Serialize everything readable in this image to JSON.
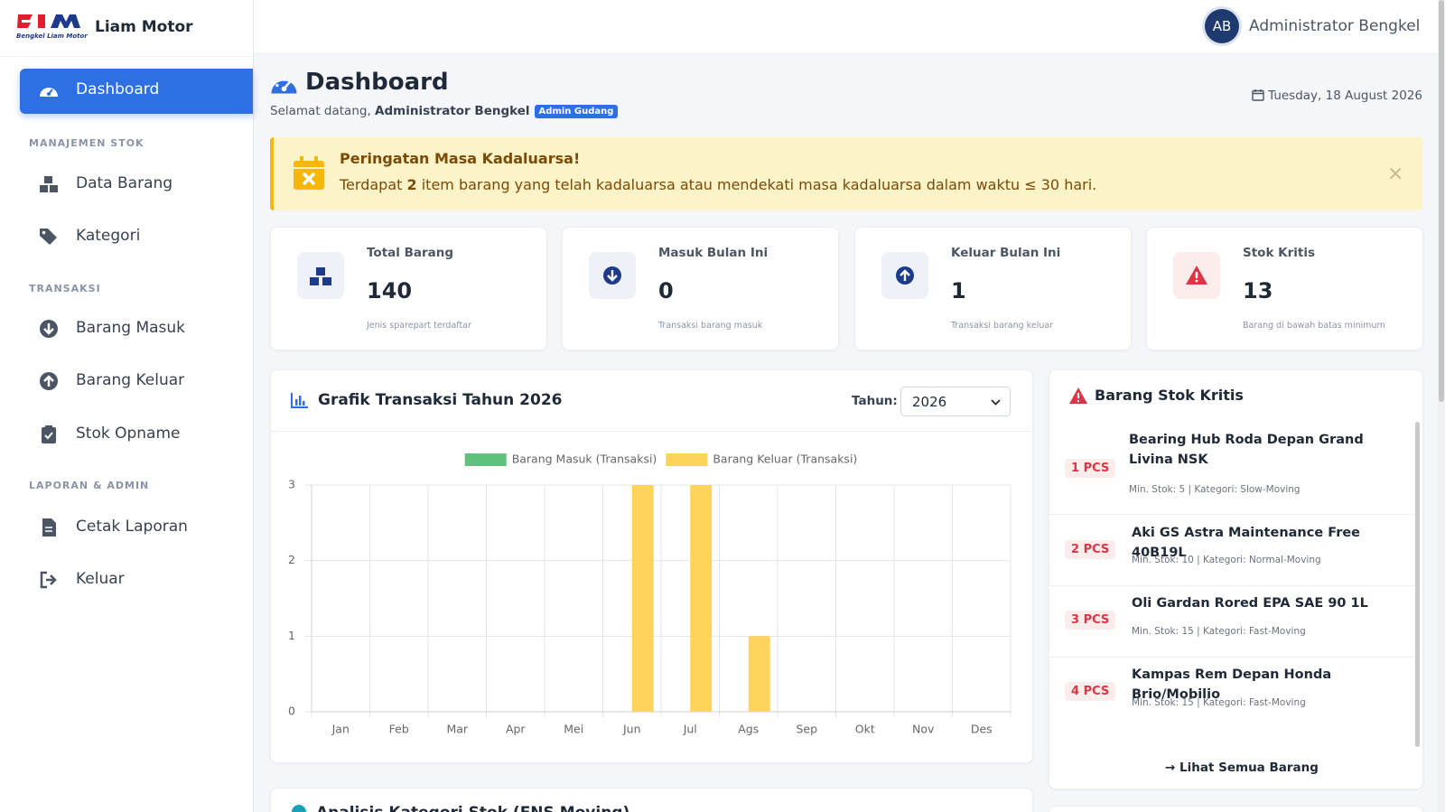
{
  "sidebar": {
    "logo_text": "Bengkel Liam Motor",
    "brand": "Liam Motor",
    "nav": [
      {
        "label": "Dashboard"
      },
      {
        "section": "MANAJEMEN STOK"
      },
      {
        "label": "Data Barang"
      },
      {
        "label": "Kategori"
      },
      {
        "section": "TRANSAKSI"
      },
      {
        "label": "Barang Masuk"
      },
      {
        "label": "Barang Keluar"
      },
      {
        "label": "Stok Opname"
      },
      {
        "section": "LAPORAN & ADMIN"
      },
      {
        "label": "Cetak Laporan"
      },
      {
        "label": "Keluar"
      }
    ]
  },
  "topbar": {
    "avatar": "AB",
    "user": "Administrator Bengkel"
  },
  "header": {
    "title": "Dashboard",
    "greeting": "Selamat datang,",
    "name": "Administrator Bengkel",
    "badge": "Admin Gudang",
    "date": "Tuesday, 18 August 2026"
  },
  "alert": {
    "title": "Peringatan Masa Kadaluarsa!",
    "text_before": "Terdapat",
    "count": 2,
    "text_after": "item barang yang telah kadaluarsa atau mendekati masa kadaluarsa dalam waktu ≤ 30 hari.",
    "close": "×"
  },
  "stats": [
    {
      "label": "Total Barang",
      "value": 140,
      "note": "Jenis sparepart terdaftar"
    },
    {
      "label": "Masuk Bulan Ini",
      "value": 0,
      "note": "Transaksi barang masuk"
    },
    {
      "label": "Keluar Bulan Ini",
      "value": 1,
      "note": "Transaksi barang keluar"
    },
    {
      "label": "Stok Kritis",
      "value": 13,
      "note": "Barang di bawah batas minimum"
    }
  ],
  "chart_card": {
    "title": "Grafik Transaksi Tahun 2026",
    "year_label": "Tahun:",
    "year_value": "2026"
  },
  "chart_data": {
    "type": "bar",
    "categories": [
      "Jan",
      "Feb",
      "Mar",
      "Apr",
      "Mei",
      "Jun",
      "Jul",
      "Ags",
      "Sep",
      "Okt",
      "Nov",
      "Des"
    ],
    "series": [
      {
        "name": "Barang Masuk (Transaksi)",
        "color": "#5fc27c",
        "values": [
          0,
          0,
          0,
          0,
          0,
          0,
          0,
          0,
          0,
          0,
          0,
          0
        ]
      },
      {
        "name": "Barang Keluar (Transaksi)",
        "color": "#fdd35a",
        "values": [
          0,
          0,
          0,
          0,
          0,
          3,
          3,
          1,
          0,
          0,
          0,
          0
        ]
      }
    ],
    "ylim": [
      0,
      3
    ],
    "yticks": [
      0,
      1,
      2,
      3
    ],
    "grid": true,
    "legend": "top"
  },
  "critical": {
    "title": "Barang Stok Kritis",
    "items": [
      {
        "qty": "1 PCS",
        "name": "Bearing Hub Roda Depan Grand Livina NSK",
        "meta": "Min. Stok: 5 | Kategori: Slow-Moving"
      },
      {
        "qty": "2 PCS",
        "name": "Aki GS Astra Maintenance Free 40B19L",
        "meta": "Min. Stok: 10 | Kategori: Normal-Moving"
      },
      {
        "qty": "3 PCS",
        "name": "Oli Gardan Rored EPA SAE 90 1L",
        "meta": "Min. Stok: 15 | Kategori: Fast-Moving"
      },
      {
        "qty": "4 PCS",
        "name": "Kampas Rem Depan Honda Brio/Mobilio",
        "meta": "Min. Stok: 15 | Kategori: Fast-Moving"
      }
    ],
    "link": "Lihat Semua Barang"
  },
  "bottom_card": {
    "title": "Analisis Kategori Stok (FNS Moving)"
  }
}
